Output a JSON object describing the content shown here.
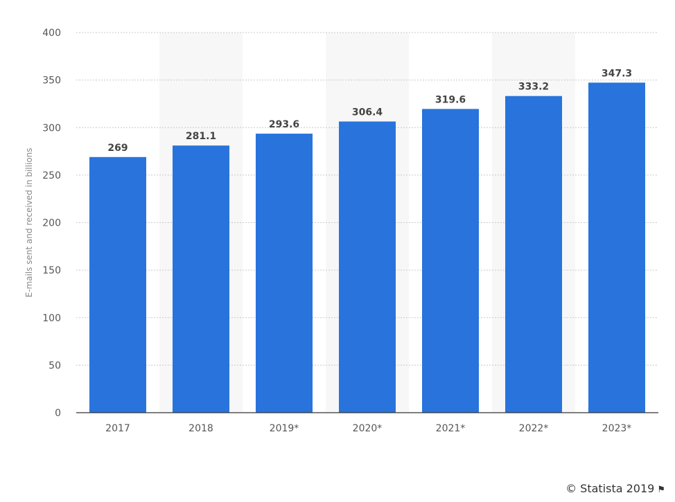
{
  "chart_data": {
    "type": "bar",
    "categories": [
      "2017",
      "2018",
      "2019*",
      "2020*",
      "2021*",
      "2022*",
      "2023*"
    ],
    "values": [
      269,
      281.1,
      293.6,
      306.4,
      319.6,
      333.2,
      347.3
    ],
    "value_labels": [
      "269",
      "281.1",
      "293.6",
      "306.4",
      "319.6",
      "333.2",
      "347.3"
    ],
    "ylabel": "E-mails sent and received in billions",
    "ylim": [
      0,
      400
    ],
    "yticks": [
      "0",
      "50",
      "100",
      "150",
      "200",
      "250",
      "300",
      "350",
      "400"
    ],
    "grid": true,
    "bar_color": "#2874dc",
    "band_color": "#f7f7f7"
  },
  "credit": {
    "text": "© Statista 2019",
    "icon": "flag-icon"
  }
}
